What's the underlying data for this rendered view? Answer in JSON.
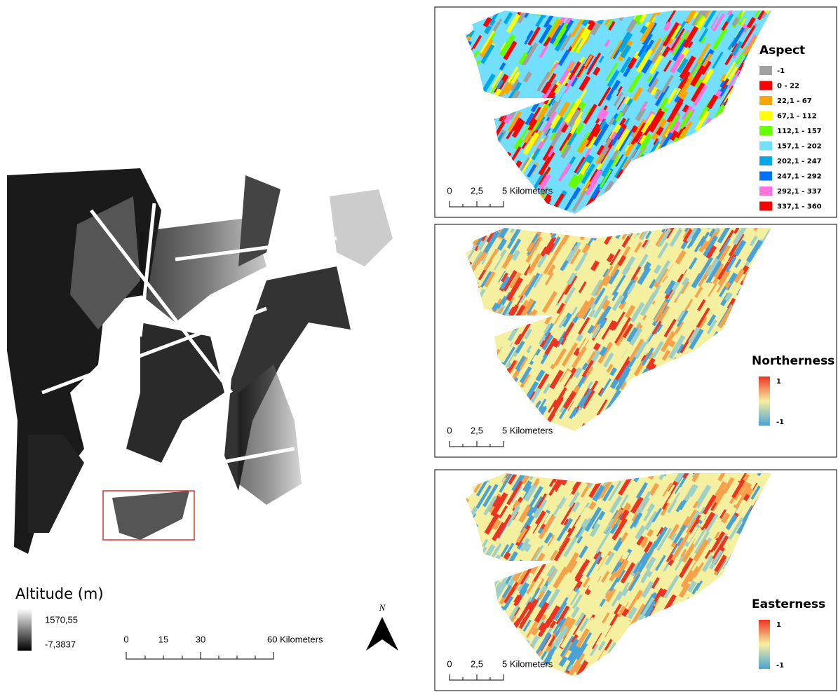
{
  "left_map": {
    "legend_title": "Altitude (m)",
    "legend_max": "1570,55",
    "legend_min": "-7,3837",
    "scale_labels": [
      "0",
      "15",
      "30",
      "60 Kilometers"
    ],
    "north": "N"
  },
  "panels": [
    {
      "legend_title": "Aspect",
      "classes": [
        {
          "label": "-1",
          "color": "#a0a0a0"
        },
        {
          "label": "0 - 22",
          "color": "#ff0000"
        },
        {
          "label": "22,1 - 67",
          "color": "#ffa500"
        },
        {
          "label": "67,1 - 112",
          "color": "#ffff00"
        },
        {
          "label": "112,1 - 157",
          "color": "#66ff00"
        },
        {
          "label": "157,1 - 202",
          "color": "#73dfff"
        },
        {
          "label": "202,1 - 247",
          "color": "#00a9e6"
        },
        {
          "label": "247,1 - 292",
          "color": "#0070ff"
        },
        {
          "label": "292,1 - 337",
          "color": "#ff73df"
        },
        {
          "label": "337,1 - 360",
          "color": "#ff0000"
        }
      ],
      "scale_labels": [
        "0",
        "2,5",
        "5 Kilometers"
      ]
    },
    {
      "legend_title": "Northerness",
      "legend_max": "1",
      "legend_min": "-1",
      "scale_labels": [
        "0",
        "2,5",
        "5 Kilometers"
      ]
    },
    {
      "legend_title": "Easterness",
      "legend_max": "1",
      "legend_min": "-1",
      "scale_labels": [
        "0",
        "2,5",
        "5 Kilometers"
      ]
    }
  ]
}
